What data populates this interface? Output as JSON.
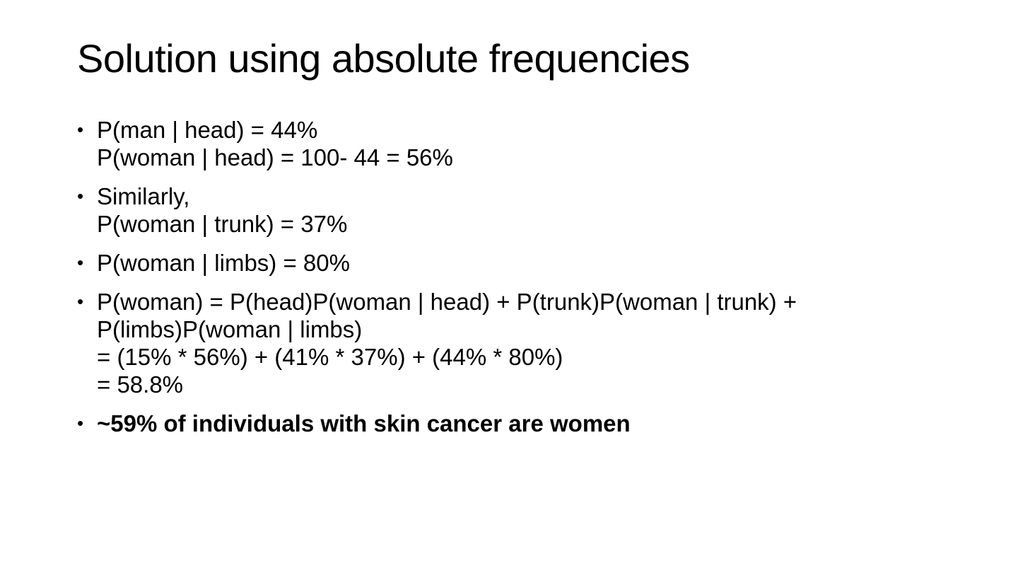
{
  "slide": {
    "title": "Solution using absolute frequencies",
    "bullet_symbol": "•",
    "bullets": [
      {
        "lines": [
          "P(man | head) = 44%",
          "P(woman | head) = 100- 44 = 56%"
        ]
      },
      {
        "lines": [
          "Similarly,",
          "P(woman | trunk) = 37%"
        ]
      },
      {
        "lines": [
          "P(woman | limbs) = 80%"
        ]
      },
      {
        "lines": [
          "P(woman) = P(head)P(woman | head) + P(trunk)P(woman | trunk) +",
          "P(limbs)P(woman | limbs)",
          "= (15% * 56%) + (41% * 37%) + (44% * 80%)",
          "= 58.8%"
        ]
      },
      {
        "lines": [
          "~59% of individuals with skin cancer are women"
        ]
      }
    ]
  }
}
